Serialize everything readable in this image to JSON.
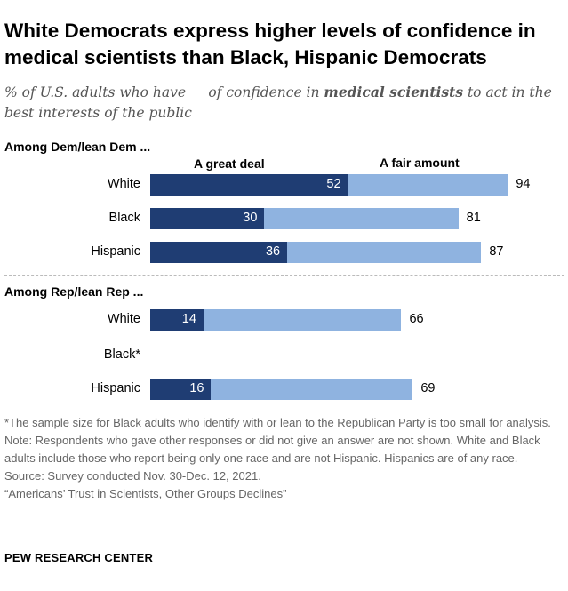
{
  "title": "White Democrats express higher levels of confidence in medical scientists than Black, Hispanic Democrats",
  "subtitle_pre": "% of U.S. adults who have __ of confidence in ",
  "subtitle_bold": "medical scientists",
  "subtitle_post": " to act in the best interests of the public",
  "columns": {
    "dark": "A great deal",
    "light": "A fair amount"
  },
  "colors": {
    "dark": "#1f3d73",
    "light": "#8fb3e0"
  },
  "chart_data": {
    "type": "bar",
    "stacked": true,
    "orientation": "horizontal",
    "xlim": [
      0,
      100
    ],
    "series": [
      {
        "name": "A great deal"
      },
      {
        "name": "A fair amount"
      }
    ],
    "groups": [
      {
        "label": "Among Dem/lean Dem ...",
        "rows": [
          {
            "label": "White",
            "great_deal": 52,
            "total": 94
          },
          {
            "label": "Black",
            "great_deal": 30,
            "total": 81
          },
          {
            "label": "Hispanic",
            "great_deal": 36,
            "total": 87
          }
        ]
      },
      {
        "label": "Among Rep/lean Rep ...",
        "rows": [
          {
            "label": "White",
            "great_deal": 14,
            "total": 66
          },
          {
            "label": "Black*",
            "great_deal": null,
            "total": null
          },
          {
            "label": "Hispanic",
            "great_deal": 16,
            "total": 69
          }
        ]
      }
    ]
  },
  "notes": [
    "*The sample size for Black adults who identify with or lean to the Republican Party is too small for analysis.",
    "Note: Respondents who gave other responses or did not give an answer are not shown. White and Black adults include those who report being only one race and are not Hispanic. Hispanics are of any race.",
    "Source: Survey conducted Nov. 30-Dec. 12, 2021.",
    "“Americans’ Trust in Scientists, Other Groups Declines”"
  ],
  "source_org": "PEW RESEARCH CENTER"
}
